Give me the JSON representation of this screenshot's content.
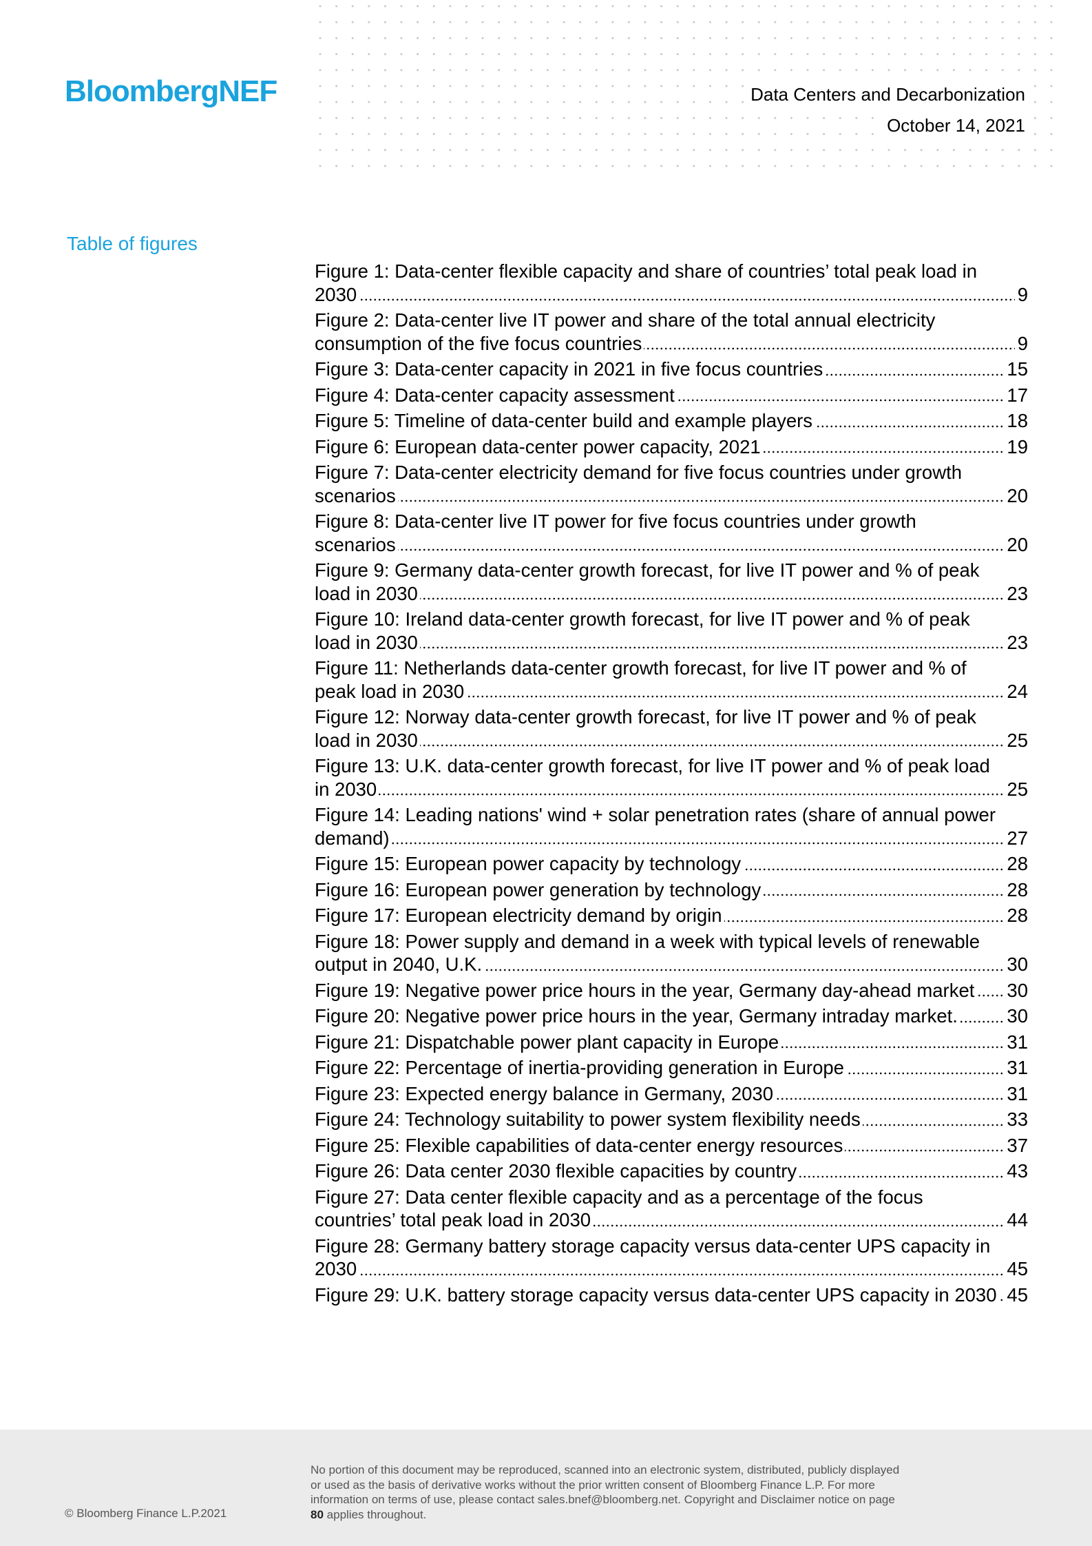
{
  "header": {
    "logo": "BloombergNEF",
    "title": "Data Centers and Decarbonization",
    "date": "October 14, 2021"
  },
  "toc": {
    "title": "Table of figures",
    "entries": [
      {
        "text": "Figure 1: Data-center flexible capacity and share of countries’ total peak load in 2030",
        "page": "9"
      },
      {
        "text": "Figure 2:  Data-center live IT power and share of the total annual electricity consumption of the five focus countries",
        "page": "9"
      },
      {
        "text": "Figure 3:  Data-center capacity in 2021 in five focus countries",
        "page": "15"
      },
      {
        "text": "Figure 4:  Data-center capacity assessment",
        "page": "17"
      },
      {
        "text": "Figure 5:  Timeline of data-center build and example players",
        "page": "18"
      },
      {
        "text": "Figure 6:  European data-center power capacity, 2021",
        "page": "19"
      },
      {
        "text": "Figure 7:  Data-center electricity demand for five focus countries under growth scenarios",
        "page": "20"
      },
      {
        "text": "Figure 8:  Data-center live IT power for five focus countries under growth scenarios",
        "page": "20"
      },
      {
        "text": "Figure 9: Germany data-center growth forecast, for live IT power and % of peak load in 2030",
        "page": "23"
      },
      {
        "text": "Figure 10: Ireland data-center growth forecast, for live IT power and % of peak load in 2030",
        "page": "23"
      },
      {
        "text": "Figure 11: Netherlands data-center growth forecast, for live IT power and % of peak load in 2030",
        "page": "24"
      },
      {
        "text": "Figure 12: Norway data-center growth forecast, for live IT power and % of peak load in 2030",
        "page": "25"
      },
      {
        "text": "Figure 13:  U.K. data-center growth forecast, for live IT power and % of peak load in 2030",
        "page": "25"
      },
      {
        "text": "Figure 14: Leading nations' wind + solar penetration rates (share of annual power demand)",
        "page": "27"
      },
      {
        "text": "Figure 15: European power capacity by technology",
        "page": "28"
      },
      {
        "text": "Figure 16: European power generation by technology",
        "page": "28"
      },
      {
        "text": "Figure 17: European electricity demand by origin",
        "page": "28"
      },
      {
        "text": "Figure 18: Power supply and demand in a week with typical levels of renewable output in 2040, U.K.",
        "page": "30"
      },
      {
        "text": "Figure 19: Negative power price hours in the year, Germany day-ahead market",
        "page": "30"
      },
      {
        "text": "Figure 20: Negative power price hours in the year, Germany intraday market.",
        "page": "30"
      },
      {
        "text": "Figure 21: Dispatchable power plant capacity in Europe",
        "page": "31"
      },
      {
        "text": "Figure 22: Percentage of inertia-providing generation in Europe",
        "page": "31"
      },
      {
        "text": "Figure 23: Expected energy balance in Germany, 2030",
        "page": "31"
      },
      {
        "text": "Figure 24: Technology suitability to power system flexibility needs",
        "page": "33"
      },
      {
        "text": "Figure 25:  Flexible capabilities of data-center energy resources",
        "page": "37"
      },
      {
        "text": "Figure 26: Data center 2030 flexible capacities by country",
        "page": "43"
      },
      {
        "text": "Figure 27: Data center flexible capacity and as a percentage of the focus countries’ total peak load in 2030",
        "page": "44"
      },
      {
        "text": "Figure 28: Germany battery storage capacity versus data-center UPS capacity in 2030",
        "page": "45"
      },
      {
        "text": "Figure 29: U.K. battery storage capacity versus data-center UPS capacity in 2030",
        "page": "45"
      }
    ]
  },
  "footer": {
    "copyright": "© Bloomberg Finance L.P.2021",
    "disclaimer": [
      "No portion of this document may be reproduced, scanned into an electronic system, distributed, publicly displayed or used as the basis of derivative works without the prior written consent of Bloomberg Finance L.P.  For more information on terms of use, please contact sales.bnef@bloomberg.net. Copyright and Disclaimer notice on page",
      "80",
      "applies throughout."
    ]
  }
}
